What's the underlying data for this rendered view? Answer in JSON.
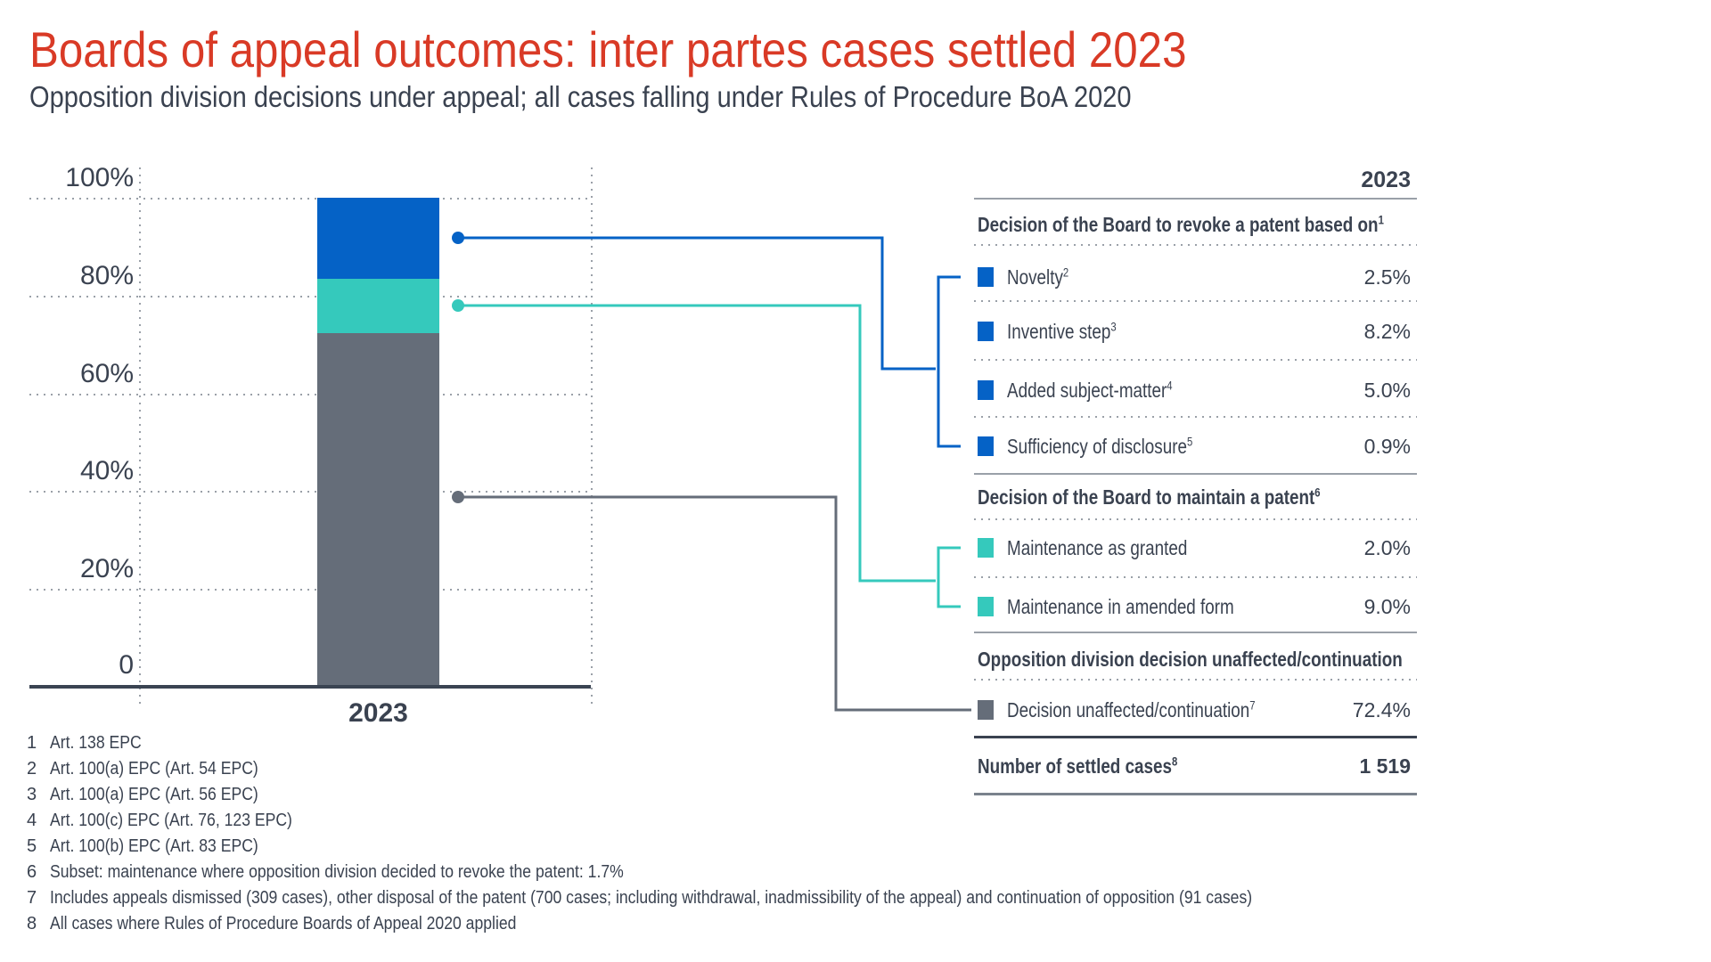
{
  "title": "Boards of appeal outcomes: inter partes cases settled 2023",
  "subtitle": "Opposition division decisions under appeal; all cases falling under Rules of Procedure BoA 2020",
  "colors": {
    "title_red": "#D93A26",
    "text_dark": "#3A4250",
    "blue": "#0562C6",
    "teal": "#35C9BC",
    "gray": "#656D79",
    "grid_gray": "#9AA0A8",
    "axis_dark": "#3A4452"
  },
  "chart_data": {
    "type": "bar",
    "stacked": true,
    "title": "Boards of appeal outcomes: inter partes cases settled 2023",
    "categories": [
      "2023"
    ],
    "y_ticks": [
      "100%",
      "80%",
      "60%",
      "40%",
      "20%",
      "0"
    ],
    "ylim": [
      0,
      100
    ],
    "grid": "dotted",
    "series": [
      {
        "name": "Decision of the Board to revoke a patent",
        "color": "#0562C6",
        "values": [
          16.6
        ],
        "breakdown": {
          "Novelty": 2.5,
          "Inventive step": 8.2,
          "Added subject-matter": 5.0,
          "Sufficiency of disclosure": 0.9
        }
      },
      {
        "name": "Decision of the Board to maintain a patent",
        "color": "#35C9BC",
        "values": [
          11.0
        ],
        "breakdown": {
          "Maintenance as granted": 2.0,
          "Maintenance in amended form": 9.0
        }
      },
      {
        "name": "Opposition division decision unaffected/continuation",
        "color": "#656D79",
        "values": [
          72.4
        ]
      }
    ],
    "number_of_settled_cases": "1 519"
  },
  "table": {
    "year_header": "2023",
    "sections": [
      {
        "header": {
          "text": "Decision of the Board to revoke a patent based on",
          "sup": "1"
        },
        "rows": [
          {
            "label": "Novelty",
            "sup": "2",
            "value": "2.5%",
            "color": "#0562C6"
          },
          {
            "label": "Inventive step",
            "sup": "3",
            "value": "8.2%",
            "color": "#0562C6"
          },
          {
            "label": "Added subject-matter",
            "sup": "4",
            "value": "5.0%",
            "color": "#0562C6"
          },
          {
            "label": "Sufficiency of disclosure",
            "sup": "5",
            "value": "0.9%",
            "color": "#0562C6"
          }
        ]
      },
      {
        "header": {
          "text": "Decision of the Board to maintain a patent",
          "sup": "6"
        },
        "rows": [
          {
            "label": "Maintenance as granted",
            "sup": "",
            "value": "2.0%",
            "color": "#35C9BC"
          },
          {
            "label": "Maintenance in amended form",
            "sup": "",
            "value": "9.0%",
            "color": "#35C9BC"
          }
        ]
      },
      {
        "header": {
          "text": "Opposition division decision unaffected/continuation",
          "sup": ""
        },
        "rows": [
          {
            "label": "Decision unaffected/continuation",
            "sup": "7",
            "value": "72.4%",
            "color": "#656D79"
          }
        ]
      }
    ],
    "total_row": {
      "label": "Number of settled cases",
      "sup": "8",
      "value": "1 519"
    }
  },
  "footnotes": [
    {
      "num": "1",
      "text": "Art. 138 EPC"
    },
    {
      "num": "2",
      "text": "Art. 100(a) EPC (Art. 54 EPC)"
    },
    {
      "num": "3",
      "text": "Art. 100(a) EPC (Art. 56 EPC)"
    },
    {
      "num": "4",
      "text": "Art. 100(c) EPC (Art. 76, 123 EPC)"
    },
    {
      "num": "5",
      "text": "Art. 100(b) EPC (Art. 83 EPC)"
    },
    {
      "num": "6",
      "text": "Subset: maintenance where opposition division decided to revoke the patent: 1.7%"
    },
    {
      "num": "7",
      "text": "Includes appeals dismissed (309 cases), other disposal of the patent (700 cases; including withdrawal, inadmissibility of the appeal) and continuation of opposition (91 cases)"
    },
    {
      "num": "8",
      "text": "All cases where Rules of Procedure Boards of Appeal 2020 applied"
    }
  ]
}
